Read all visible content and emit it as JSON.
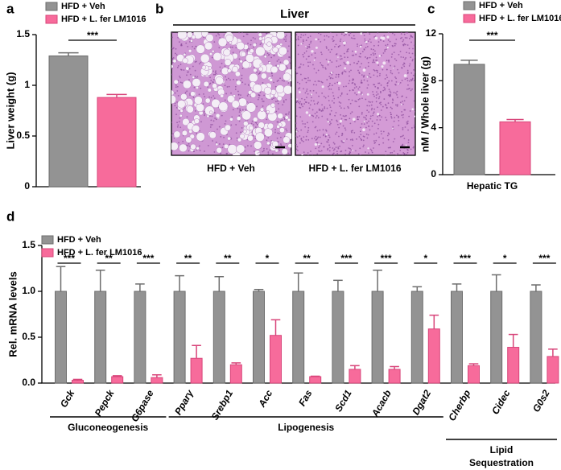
{
  "chart_data": [
    {
      "type": "bar",
      "label": "a",
      "ylabel": "Liver weight (g)",
      "categories": [
        null
      ],
      "series": [
        {
          "name": "HFD + Veh",
          "color": "#939393",
          "values": [
            1.29
          ],
          "errors": [
            0.03
          ]
        },
        {
          "name": "HFD + L. fer LM1016",
          "color": "#f76b9b",
          "values": [
            0.88
          ],
          "errors": [
            0.03
          ]
        }
      ],
      "significance": [
        "***"
      ],
      "ylim": [
        0,
        1.5
      ],
      "yticks": [
        0,
        0.5,
        1,
        1.5
      ]
    },
    {
      "type": "bar",
      "label": "c",
      "ylabel": "nM / Whole liver (g)",
      "categories": [
        "Hepatic TG"
      ],
      "series": [
        {
          "name": "HFD + Veh",
          "color": "#939393",
          "values": [
            9.4
          ],
          "errors": [
            0.35
          ]
        },
        {
          "name": "HFD + L. fer LM1016",
          "color": "#f76b9b",
          "values": [
            4.5
          ],
          "errors": [
            0.2
          ]
        }
      ],
      "significance": [
        "***"
      ],
      "ylim": [
        0,
        12
      ],
      "yticks": [
        0,
        4,
        8,
        12
      ]
    },
    {
      "type": "bar",
      "label": "d",
      "ylabel": "Rel. mRNA levels",
      "categories": [
        "Gck",
        "Pepck",
        "G6pase",
        "Pparγ",
        "Srebp1",
        "Acc",
        "Fas",
        "Scd1",
        "Acacb",
        "Dgat2",
        "Cherbp",
        "Cidec",
        "G0s2"
      ],
      "series": [
        {
          "name": "HFD + Veh",
          "color": "#939393",
          "values": [
            1.0,
            1.0,
            1.0,
            1.0,
            1.0,
            1.0,
            1.0,
            1.0,
            1.0,
            1.0,
            1.0,
            1.0,
            1.0
          ],
          "errors": [
            0.27,
            0.23,
            0.08,
            0.17,
            0.16,
            0.02,
            0.2,
            0.12,
            0.23,
            0.05,
            0.08,
            0.18,
            0.07
          ]
        },
        {
          "name": "HFD + L. fer LM1016",
          "color": "#f76b9b",
          "values": [
            0.03,
            0.07,
            0.06,
            0.27,
            0.2,
            0.52,
            0.07,
            0.15,
            0.15,
            0.59,
            0.19,
            0.39,
            0.29
          ],
          "errors": [
            0.01,
            0.01,
            0.03,
            0.14,
            0.02,
            0.17,
            0.005,
            0.04,
            0.03,
            0.15,
            0.02,
            0.14,
            0.08
          ]
        }
      ],
      "significance": [
        "***",
        "**",
        "***",
        "**",
        "**",
        "*",
        "**",
        "***",
        "***",
        "*",
        "***",
        "*",
        "***"
      ],
      "groups": [
        {
          "lines": [
            "Gluconeogenesis"
          ],
          "from": 0,
          "to": 2
        },
        {
          "lines": [
            "Lipogenesis"
          ],
          "from": 3,
          "to": 9
        },
        {
          "lines": [
            "Lipid",
            "Sequestration"
          ],
          "from": 10,
          "to": 12
        }
      ],
      "ylim": [
        0,
        1.5
      ],
      "yticks": [
        {
          "value": 0,
          "label": "0.0"
        },
        {
          "value": 0.5,
          "label": "0.5"
        },
        {
          "value": 1,
          "label": "1.0"
        },
        {
          "value": 1.5,
          "label": "1.5"
        }
      ]
    }
  ],
  "image_panel": {
    "label": "b",
    "title": "Liver",
    "captions": [
      "HFD + Veh",
      "HFD + L. fer LM1016"
    ]
  }
}
